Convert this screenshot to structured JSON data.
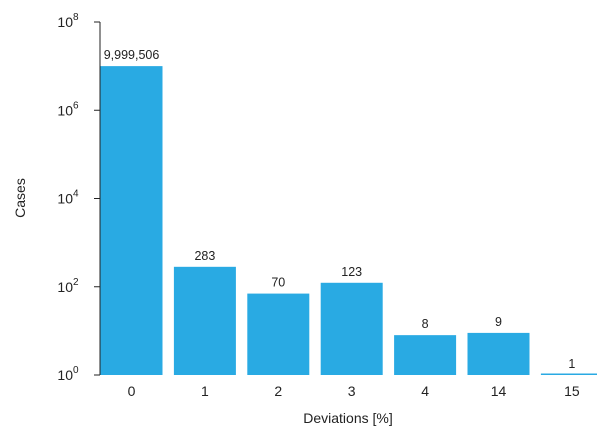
{
  "chart_data": {
    "type": "bar",
    "categories": [
      "0",
      "1",
      "2",
      "3",
      "4",
      "14",
      "15"
    ],
    "values": [
      9999506,
      283,
      70,
      123,
      8,
      9,
      1
    ],
    "data_labels": [
      "9,999,506",
      "283",
      "70",
      "123",
      "8",
      "9",
      "1"
    ],
    "xlabel": "Deviations [%]",
    "ylabel": "Cases",
    "yscale": "log",
    "ylim": [
      1,
      100000000
    ],
    "yticks": [
      {
        "base": "10",
        "exp": "0",
        "value": 1
      },
      {
        "base": "10",
        "exp": "2",
        "value": 100
      },
      {
        "base": "10",
        "exp": "4",
        "value": 10000
      },
      {
        "base": "10",
        "exp": "6",
        "value": 1000000
      },
      {
        "base": "10",
        "exp": "8",
        "value": 100000000
      }
    ],
    "grid": false,
    "legend": "none",
    "bar_color": "#29aae3",
    "axis_color": "#222222"
  }
}
